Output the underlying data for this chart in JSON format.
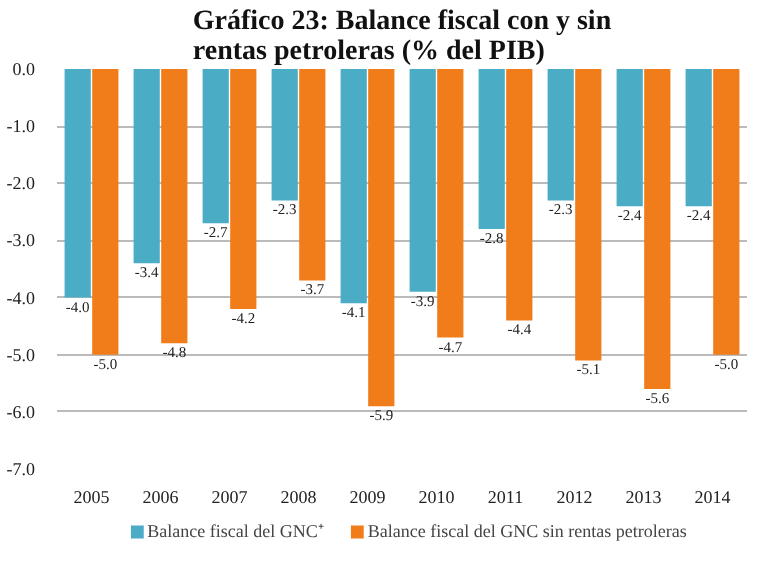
{
  "chart_data": {
    "type": "bar",
    "title": "Gráfico 23: Balance fiscal con y sin rentas petroleras (% del PIB)",
    "categories": [
      "2005",
      "2006",
      "2007",
      "2008",
      "2009",
      "2010",
      "2011",
      "2012",
      "2013",
      "2014"
    ],
    "series": [
      {
        "name": "Balance fiscal del GNC⁺",
        "color": "#4bacc6",
        "values": [
          -4.0,
          -3.4,
          -2.7,
          -2.3,
          -4.1,
          -3.9,
          -2.8,
          -2.3,
          -2.4,
          -2.4
        ],
        "value_labels": [
          "-4.0",
          "-3.4",
          "-2.7",
          "-2.3",
          "-4.1",
          "-3.9",
          "-2.8",
          "-2.3",
          "-2.4",
          "-2.4"
        ]
      },
      {
        "name": "Balance fiscal del GNC sin rentas petroleras",
        "color": "#f07c1a",
        "values": [
          -5.0,
          -4.8,
          -4.2,
          -3.7,
          -5.9,
          -4.7,
          -4.4,
          -5.1,
          -5.6,
          -5.0
        ],
        "value_labels": [
          "-5.0",
          "-4.8",
          "-4.2",
          "-3.7",
          "-5.9",
          "-4.7",
          "-4.4",
          "-5.1",
          "-5.6",
          "-5.0"
        ]
      }
    ],
    "ylim": [
      -7.0,
      0.0
    ],
    "yticks": [
      {
        "value": -7,
        "label": "-7.0"
      },
      {
        "value": -6,
        "label": "-6.0"
      },
      {
        "value": -5,
        "label": "-5.0"
      },
      {
        "value": -4,
        "label": "-4.0"
      },
      {
        "value": -3,
        "label": "-3.0"
      },
      {
        "value": -2,
        "label": "-2.0"
      },
      {
        "value": -1,
        "label": "-1.0"
      },
      {
        "value": 0,
        "label": "0.0"
      }
    ],
    "grid": "y",
    "legend": "bottom"
  }
}
